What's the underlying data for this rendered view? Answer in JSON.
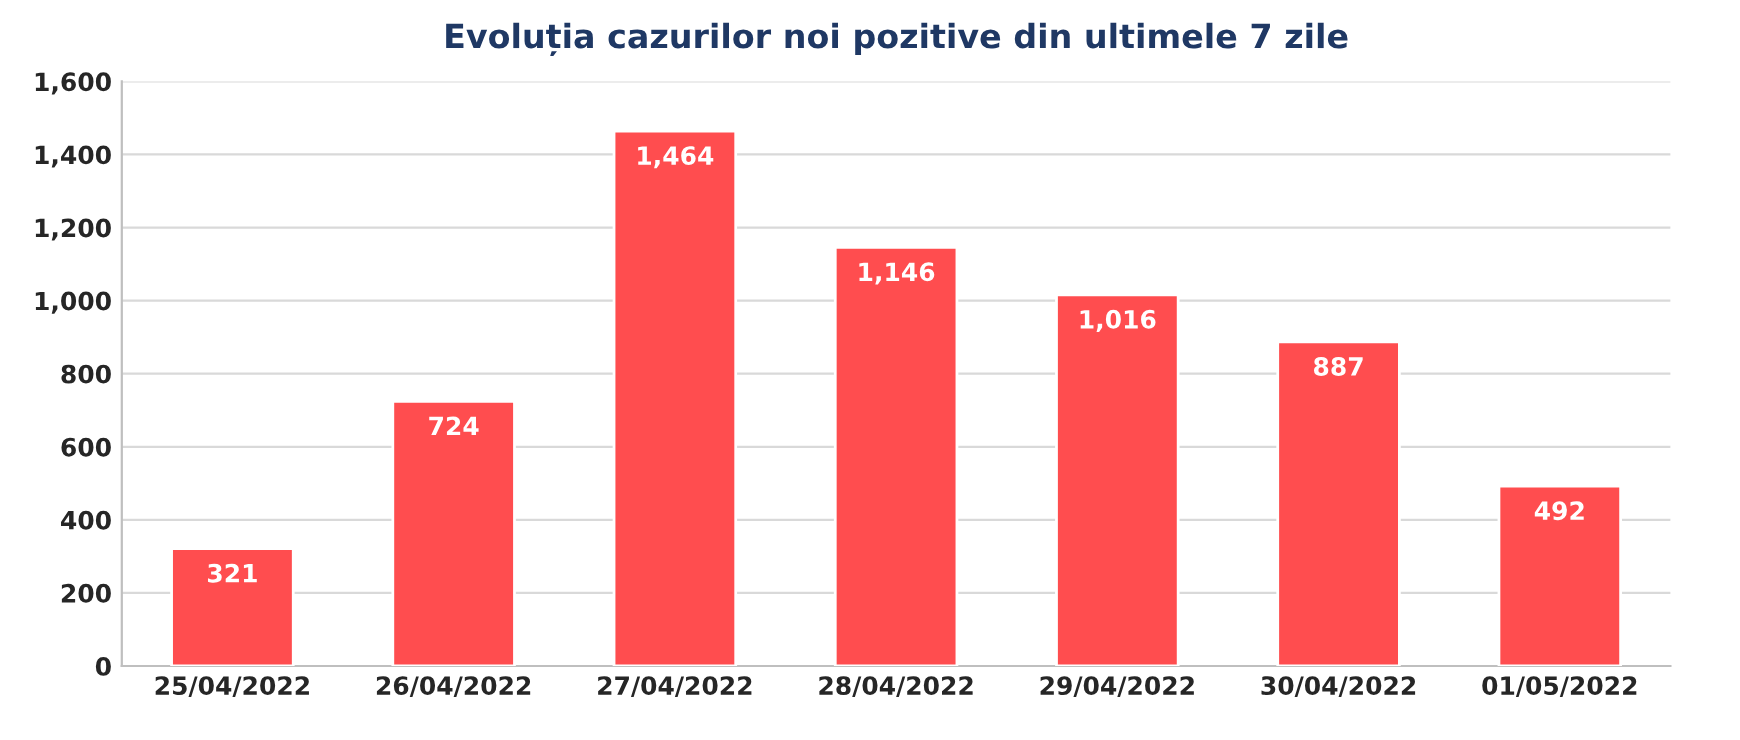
{
  "chart_data": {
    "type": "bar",
    "title": "Evoluția cazurilor noi pozitive din ultimele 7 zile",
    "categories": [
      "25/04/2022",
      "26/04/2022",
      "27/04/2022",
      "28/04/2022",
      "29/04/2022",
      "30/04/2022",
      "01/05/2022"
    ],
    "values": [
      321,
      724,
      1464,
      1146,
      1016,
      887,
      492
    ],
    "color": "#ff4d4f",
    "ylim": [
      0,
      1600
    ],
    "yticks": [
      0,
      200,
      400,
      600,
      800,
      {
        "value": 1000,
        "label": "1,000"
      },
      {
        "value": 1200,
        "label": "1,200"
      },
      {
        "value": 1400,
        "label": "1,400"
      },
      {
        "value": 1600,
        "label": "1,600"
      }
    ],
    "value_labels": [
      "321",
      "724",
      "1,464",
      "1,146",
      "1,016",
      "887",
      "492"
    ],
    "grid": "y"
  }
}
